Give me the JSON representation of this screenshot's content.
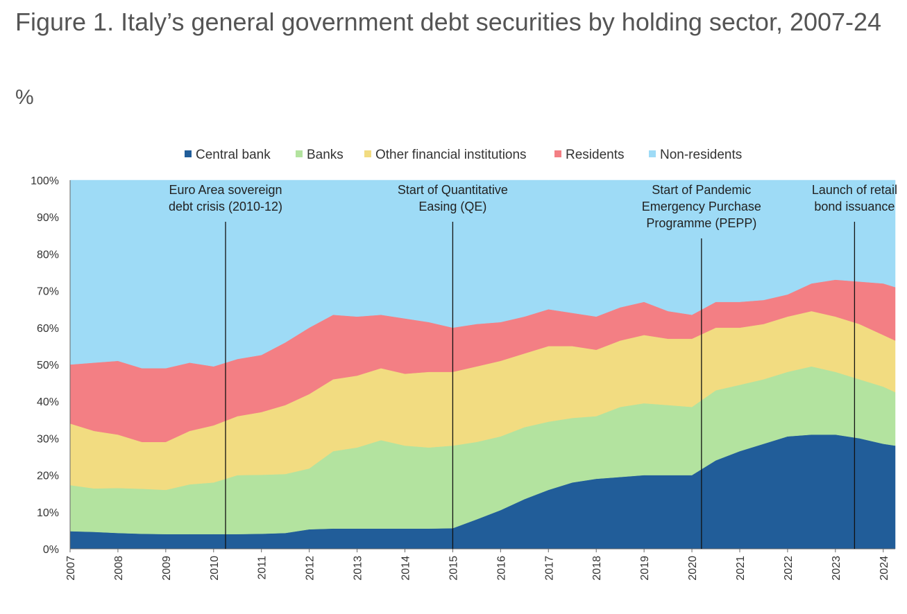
{
  "title": "Figure 1. Italy’s general government debt securities by holding sector, 2007-24",
  "unit_label": "%",
  "chart_data": {
    "type": "area",
    "stacked": true,
    "x": [
      2007.0,
      2007.5,
      2008.0,
      2008.5,
      2009.0,
      2009.5,
      2010.0,
      2010.5,
      2011.0,
      2011.5,
      2012.0,
      2012.5,
      2013.0,
      2013.5,
      2014.0,
      2014.5,
      2015.0,
      2015.5,
      2016.0,
      2016.5,
      2017.0,
      2017.5,
      2018.0,
      2018.5,
      2019.0,
      2019.5,
      2020.0,
      2020.5,
      2021.0,
      2021.5,
      2022.0,
      2022.5,
      2023.0,
      2023.5,
      2024.0,
      2024.25
    ],
    "xlim": [
      2007,
      2024.25
    ],
    "ylim": [
      0,
      100
    ],
    "x_ticks": [
      "2007",
      "2008",
      "2009",
      "2010",
      "2011",
      "2012",
      "2013",
      "2014",
      "2015",
      "2016",
      "2017",
      "2018",
      "2019",
      "2020",
      "2021",
      "2022",
      "2023",
      "2024"
    ],
    "y_ticks": [
      "0%",
      "10%",
      "20%",
      "30%",
      "40%",
      "50%",
      "60%",
      "70%",
      "80%",
      "90%",
      "100%"
    ],
    "legend_position": "top",
    "series": [
      {
        "name": "Central bank",
        "color": "#215d99",
        "values": [
          4.8,
          4.6,
          4.3,
          4.1,
          4.0,
          4.0,
          4.0,
          4.0,
          4.1,
          4.3,
          5.3,
          5.5,
          5.5,
          5.5,
          5.5,
          5.5,
          5.6,
          8.0,
          10.5,
          13.5,
          16.0,
          18.0,
          19.0,
          19.5,
          20.0,
          20.0,
          20.0,
          24.0,
          26.5,
          28.5,
          30.5,
          31.0,
          31.0,
          30.0,
          28.5,
          28.0
        ]
      },
      {
        "name": "Banks",
        "color": "#b3e39f",
        "values": [
          12.5,
          11.8,
          12.2,
          12.2,
          12.0,
          13.5,
          14.0,
          16.0,
          16.0,
          16.0,
          16.5,
          21.0,
          22.0,
          24.0,
          22.5,
          22.0,
          22.4,
          21.0,
          20.0,
          19.5,
          18.5,
          17.5,
          17.0,
          19.0,
          19.5,
          19.0,
          18.5,
          19.0,
          18.0,
          17.5,
          17.5,
          18.5,
          17.0,
          16.0,
          15.5,
          14.5
        ]
      },
      {
        "name": "Other financial institutions",
        "color": "#f2dc81",
        "values": [
          16.7,
          15.6,
          14.5,
          12.7,
          13.0,
          14.5,
          15.5,
          16.0,
          17.0,
          18.7,
          20.2,
          19.5,
          19.5,
          19.5,
          19.5,
          20.5,
          20.0,
          20.5,
          20.5,
          20.0,
          20.5,
          19.5,
          18.0,
          18.0,
          18.5,
          18.0,
          18.5,
          17.0,
          15.5,
          15.0,
          15.0,
          15.0,
          15.0,
          15.0,
          14.0,
          14.0
        ]
      },
      {
        "name": "Residents",
        "color": "#f37f84",
        "values": [
          16.0,
          18.5,
          20.0,
          20.0,
          20.0,
          18.5,
          16.0,
          15.5,
          15.5,
          17.0,
          18.0,
          17.5,
          16.0,
          14.5,
          15.0,
          13.5,
          12.0,
          11.5,
          10.5,
          10.0,
          10.0,
          9.0,
          9.0,
          9.0,
          9.0,
          7.5,
          6.5,
          7.0,
          7.0,
          6.5,
          6.0,
          7.5,
          10.0,
          11.5,
          14.0,
          14.5
        ]
      },
      {
        "name": "Non-residents",
        "color": "#9edbf6",
        "values": [
          50.0,
          49.5,
          49.0,
          51.0,
          51.0,
          49.5,
          50.5,
          48.5,
          47.4,
          44.0,
          40.0,
          36.5,
          37.0,
          36.5,
          37.5,
          38.5,
          40.0,
          39.0,
          38.5,
          37.0,
          35.0,
          36.0,
          37.0,
          34.5,
          33.0,
          35.5,
          36.5,
          33.0,
          33.0,
          32.5,
          31.0,
          28.0,
          27.0,
          27.5,
          28.0,
          29.0
        ]
      }
    ],
    "annotations": [
      {
        "x": 2010.25,
        "lines": [
          "Euro Area sovereign",
          "debt crisis (2010-12)"
        ]
      },
      {
        "x": 2015.0,
        "lines": [
          "Start of Quantitative",
          "Easing (QE)"
        ]
      },
      {
        "x": 2020.2,
        "lines": [
          "Start of Pandemic",
          "Emergency Purchase",
          "Programme (PEPP)"
        ]
      },
      {
        "x": 2023.4,
        "lines": [
          "Launch of retail",
          "bond issuance"
        ]
      }
    ]
  }
}
